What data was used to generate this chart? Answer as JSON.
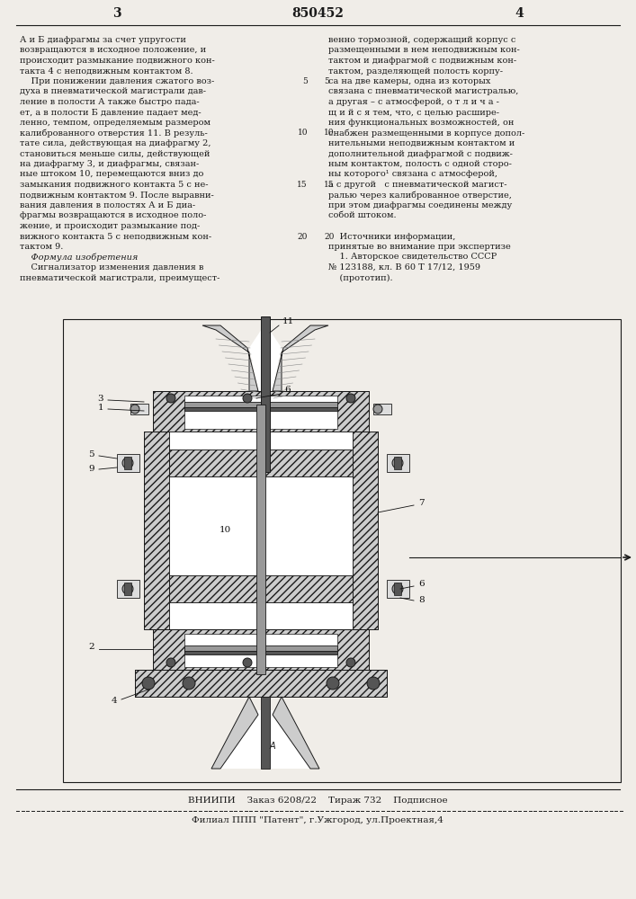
{
  "page_number_left": "3",
  "patent_number": "850452",
  "page_number_right": "4",
  "background_color": "#f0ede8",
  "text_color": "#1a1a1a",
  "left_column_text": [
    "А и Б диафрагмы за счет упругости",
    "возвращаются в исходное положение, и",
    "происходит размыкание подвижного кон-",
    "такта 4 с неподвижным контактом 8.",
    "    При понижении давления сжатого воз-",
    "духа в пневматической магистрали дав-",
    "ление в полости А также быстро пада-",
    "ет, а в полости Б давление падает мед-",
    "ленно, темпом, определяемым размером",
    "калиброванного отверстия 11. В резуль-",
    "тате сила, действующая на диафрагму 2,",
    "становиться меньше силы, действующей",
    "на диафрагму 3, и диафрагмы, связан-",
    "ные штоком 10, перемещаются вниз до",
    "замыкания подвижного контакта 5 с не-",
    "подвижным контактом 9. После выравни-",
    "вания давления в полостях А и Б диа-",
    "фрагмы возвращаются в исходное поло-",
    "жение, и происходит размыкание под-",
    "вижного контакта 5 с неподвижным кон-",
    "тактом 9.",
    "    Формула изобретения",
    "    Сигнализатор изменения давления в",
    "пневматической магистрали, преимущест-"
  ],
  "right_column_text": [
    "венно тормозной, содержащий корпус с",
    "размещенными в нем неподвижным кон-",
    "тактом и диафрагмой с подвижным кон-",
    "тактом, разделяющей полость корпу-",
    "са на две камеры, одна из которых",
    "связана с пневматической магистралью,",
    "а другая – с атмосферой, о т л и ч а -",
    "щ и й с я тем, что, с целью расшире-",
    "ния функциональных возможностей, он",
    "снабжен размещенными в корпусе допол-",
    "нительными неподвижным контактом и",
    "дополнительной диафрагмой с подвиж-",
    "ным контактом, полость с одной сторо-",
    "ны которого¹ связана с атмосферой,",
    "а с другой   с пневматической магист-",
    "ралью через калиброванное отверстие,",
    "при этом диафрагмы соединены между",
    "собой штоком.",
    "",
    "    Источники информации,",
    "принятые во внимание при экспертизе",
    "    1. Авторское свидетельство СССР",
    "№ 123188, кл. В 60 Т 17/12, 1959",
    "    (прототип)."
  ],
  "footer_line1": "ВНИИПИ    Заказ 6208/22    Тираж 732    Подписное",
  "footer_line2": "Филиал ППП \"Патент\", г.Ужгород, ул.Проектная,4"
}
